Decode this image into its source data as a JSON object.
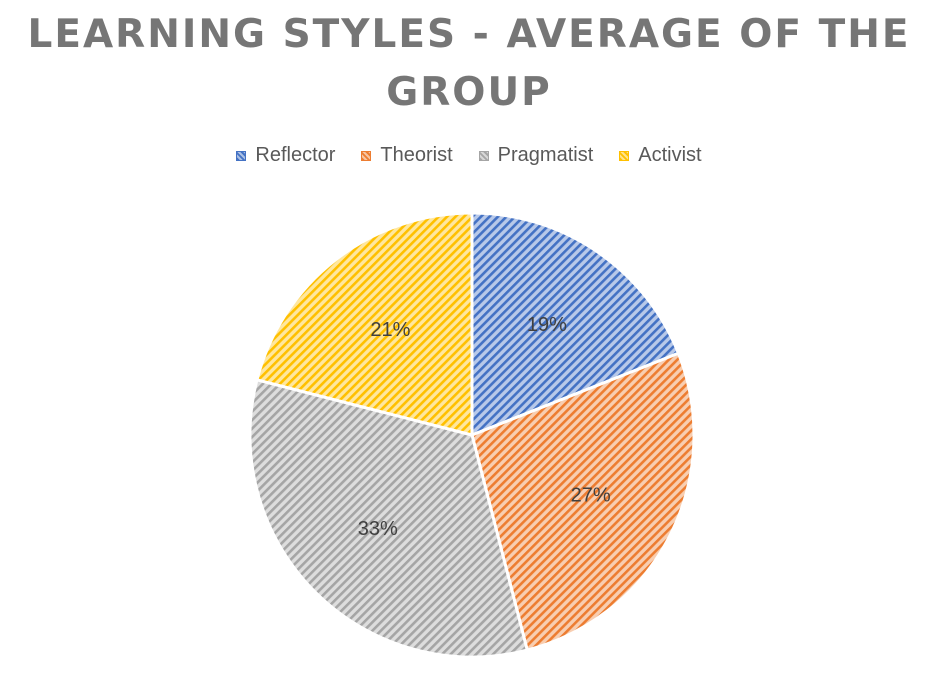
{
  "chart_data": {
    "type": "pie",
    "title": "LEARNING STYLES - AVERAGE OF THE GROUP",
    "categories": [
      "Reflector",
      "Theorist",
      "Pragmatist",
      "Activist"
    ],
    "values": [
      19,
      27,
      33,
      21
    ],
    "labels": [
      "19%",
      "27%",
      "33%",
      "21%"
    ],
    "colors": [
      "#4472C4",
      "#ED7D31",
      "#A5A5A5",
      "#FFC000"
    ],
    "fill_pattern": "diagonal-hatch",
    "start": "12 o'clock",
    "direction": "clockwise",
    "legend_position": "top"
  }
}
